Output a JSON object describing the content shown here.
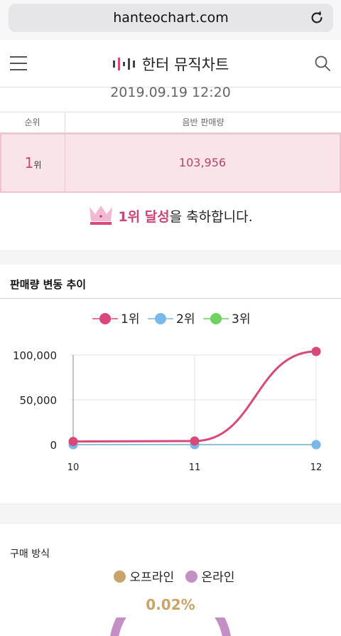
{
  "browser": {
    "url": "hanteochart.com"
  },
  "header": {
    "logo_text": "한터 뮤직차트"
  },
  "datetime": "2019.09.19 12:20",
  "rank_table": {
    "col_rank": "순위",
    "col_sales": "음반 판매량",
    "rank_number": "1",
    "rank_suffix": "위",
    "sales": "103,956"
  },
  "congrats": {
    "highlight": "1위 달성",
    "rest": "을 축하합니다."
  },
  "sales_trend": {
    "title": "판매량 변동 추이"
  },
  "chart_data": {
    "type": "line",
    "title": "",
    "xlabel": "",
    "ylabel": "",
    "x": [
      "10",
      "11",
      "12"
    ],
    "ylim": [
      0,
      100000
    ],
    "yticks": [
      "100,000",
      "50,000",
      "0"
    ],
    "ytick_values": [
      100000,
      50000,
      0
    ],
    "legend_position": "top",
    "grid": true,
    "series": [
      {
        "name": "1위",
        "color": "#d9487a",
        "values": [
          3500,
          4000,
          103956
        ]
      },
      {
        "name": "2위",
        "color": "#7ab8ea",
        "values": [
          0,
          0,
          0
        ]
      },
      {
        "name": "3위",
        "color": "#6fd160",
        "values": [
          0,
          0,
          0
        ]
      }
    ]
  },
  "purchase": {
    "title": "구매 방식",
    "legend": [
      {
        "label": "오프라인",
        "color": "#c9a46a"
      },
      {
        "label": "온라인",
        "color": "#c48fc4"
      }
    ],
    "offline_percent": "0.02%",
    "pct_color": "#c9a46a"
  }
}
